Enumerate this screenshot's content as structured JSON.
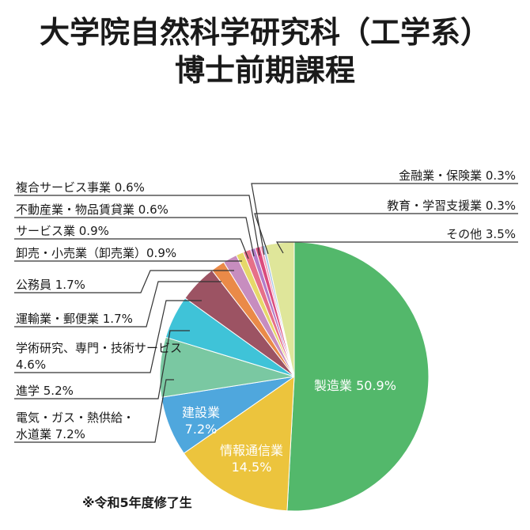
{
  "title": [
    "大学院自然科学研究科（工学系）",
    "博士前期課程"
  ],
  "footnote": "※令和5年度修了生",
  "chart_data": {
    "type": "pie",
    "title": "大学院自然科学研究科（工学系） 博士前期課程",
    "slices": [
      {
        "label": "製造業",
        "value": 50.9,
        "color": "#53b86b"
      },
      {
        "label": "情報通信業",
        "value": 14.5,
        "color": "#ecc43d"
      },
      {
        "label": "建設業",
        "value": 7.2,
        "color": "#4fa7dd"
      },
      {
        "label": "電気・ガス・熱供給・水道業",
        "value": 7.2,
        "color": "#7ac8a2"
      },
      {
        "label": "進学",
        "value": 5.2,
        "color": "#3fc3d8"
      },
      {
        "label": "学術研究、専門・技術サービス",
        "value": 4.6,
        "color": "#9c5363"
      },
      {
        "label": "運輸業・郵便業",
        "value": 1.7,
        "color": "#ea8a48"
      },
      {
        "label": "公務員",
        "value": 1.7,
        "color": "#c78dbf"
      },
      {
        "label": "卸売・小売業（卸売業）",
        "value": 0.9,
        "color": "#e6d86a"
      },
      {
        "label": "サービス業",
        "value": 0.9,
        "color": "#e67088"
      },
      {
        "label": "不動産業・物品賃貸業",
        "value": 0.6,
        "color": "#b47cc8"
      },
      {
        "label": "複合サービス事業",
        "value": 0.6,
        "color": "#db4c7d"
      },
      {
        "label": "金融業・保険業",
        "value": 0.3,
        "color": "#f29ab8"
      },
      {
        "label": "教育・学習支援業",
        "value": 0.3,
        "color": "#a4c4e6"
      },
      {
        "label": "その他",
        "value": 3.5,
        "color": "#dfe69a"
      }
    ],
    "labels_text": {
      "manufacturing": "製造業 50.9%",
      "ict_1": "情報通信業",
      "ict_2": "14.5%",
      "construction_1": "建設業",
      "construction_2": "7.2%",
      "utilities_1": "電気・ガス・熱供給・",
      "utilities_2": "水道業 7.2%",
      "further_study": "進学 5.2%",
      "research_1": "学術研究、専門・技術サービス",
      "research_2": "4.6%",
      "transport": "運輸業・郵便業 1.7%",
      "public": "公務員 1.7%",
      "wholesale": "卸売・小売業（卸売業）0.9%",
      "services": "サービス業 0.9%",
      "realestate": "不動産業・物品賃貸業 0.6%",
      "compound": "複合サービス事業 0.6%",
      "finance": "金融業・保険業 0.3%",
      "education": "教育・学習支援業 0.3%",
      "other": "その他 3.5%"
    }
  }
}
